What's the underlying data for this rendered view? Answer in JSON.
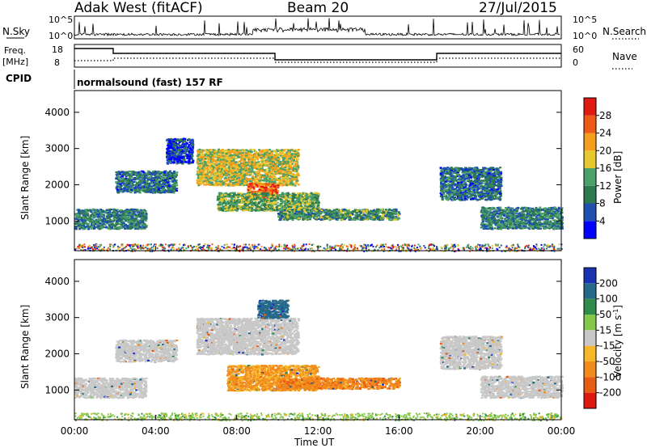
{
  "header": {
    "station": "Adak West (fitACF)",
    "beam": "Beam 20",
    "date": "27/Jul/2015"
  },
  "sky_panel": {
    "left_label": "N.Sky",
    "right_label": "N.Search",
    "tick_top": "10^5",
    "tick_bottom": "10^0"
  },
  "freq_panel": {
    "left_label_line1": "Freq.",
    "left_label_line2": "[MHz]",
    "left_tick_top": "18",
    "left_tick_bottom": "8",
    "right_label": "Nave",
    "right_tick_top": "60",
    "right_tick_bottom": "0"
  },
  "cpid_panel": {
    "label": "CPID",
    "mode": "normalsound (fast) 157 RF"
  },
  "x_axis": {
    "label": "Time UT",
    "ticks": [
      "00:00",
      "04:00",
      "08:00",
      "12:00",
      "16:00",
      "20:00",
      "00:00"
    ]
  },
  "colors": {
    "power_scale": [
      "#0000ff",
      "#1f4fb0",
      "#2e7a4f",
      "#4ca06a",
      "#e8c82e",
      "#f59e1c",
      "#ee5a18",
      "#e01a10"
    ],
    "velocity_scale": [
      "#1932b4",
      "#256a8a",
      "#2f8c4a",
      "#84c84c",
      "#c8c8c8",
      "#f5b82a",
      "#f28a1c",
      "#e85d14",
      "#dd1a10"
    ]
  },
  "chart_data": [
    {
      "type": "heatmap",
      "title": "",
      "xlabel": "Time UT",
      "ylabel": "Slant Range [km]",
      "xlim": [
        0,
        24
      ],
      "ylim": [
        180,
        4600
      ],
      "y_ticks": [
        "1000",
        "2000",
        "3000",
        "4000"
      ],
      "colorbar": {
        "label": "Power [dB]",
        "ticks": [
          "4",
          "8",
          "12",
          "16",
          "20",
          "24",
          "28"
        ]
      },
      "regions": [
        {
          "t": [
            0.0,
            3.5
          ],
          "r": [
            800,
            1350
          ],
          "level": 10
        },
        {
          "t": [
            2.0,
            5.0
          ],
          "r": [
            1800,
            2400
          ],
          "level": 9
        },
        {
          "t": [
            4.5,
            5.8
          ],
          "r": [
            2600,
            3300
          ],
          "level": 5
        },
        {
          "t": [
            6.0,
            11.0
          ],
          "r": [
            2000,
            3000
          ],
          "level": 18
        },
        {
          "t": [
            8.5,
            10.0
          ],
          "r": [
            1650,
            2050
          ],
          "level": 26
        },
        {
          "t": [
            7.0,
            12.0
          ],
          "r": [
            1300,
            1800
          ],
          "level": 14
        },
        {
          "t": [
            10.0,
            16.0
          ],
          "r": [
            1050,
            1350
          ],
          "level": 12
        },
        {
          "t": [
            18.0,
            21.0
          ],
          "r": [
            1600,
            2500
          ],
          "level": 9
        },
        {
          "t": [
            20.0,
            24.0
          ],
          "r": [
            800,
            1400
          ],
          "level": 10
        }
      ]
    },
    {
      "type": "heatmap",
      "title": "",
      "xlabel": "Time UT",
      "ylabel": "Slant Range [km]",
      "xlim": [
        0,
        24
      ],
      "ylim": [
        180,
        4600
      ],
      "y_ticks": [
        "1000",
        "2000",
        "3000",
        "4000"
      ],
      "colorbar": {
        "label": "Velocity [m s-1]",
        "ticks": [
          "200",
          "100",
          "50",
          "15",
          "-15",
          "-50",
          "-100",
          "-200"
        ]
      },
      "regions": [
        {
          "t": [
            0.0,
            3.5
          ],
          "r": [
            800,
            1350
          ],
          "level": 0
        },
        {
          "t": [
            2.0,
            5.0
          ],
          "r": [
            1800,
            2400
          ],
          "level": 0
        },
        {
          "t": [
            6.0,
            11.0
          ],
          "r": [
            2000,
            3000
          ],
          "level": 0
        },
        {
          "t": [
            9.0,
            10.5
          ],
          "r": [
            3000,
            3500
          ],
          "level": 120
        },
        {
          "t": [
            7.5,
            12.0
          ],
          "r": [
            1000,
            1700
          ],
          "level": -60
        },
        {
          "t": [
            10.0,
            16.0
          ],
          "r": [
            1050,
            1350
          ],
          "level": -80
        },
        {
          "t": [
            18.0,
            21.0
          ],
          "r": [
            1600,
            2500
          ],
          "level": 0
        },
        {
          "t": [
            20.0,
            24.0
          ],
          "r": [
            800,
            1400
          ],
          "level": 0
        }
      ]
    }
  ]
}
